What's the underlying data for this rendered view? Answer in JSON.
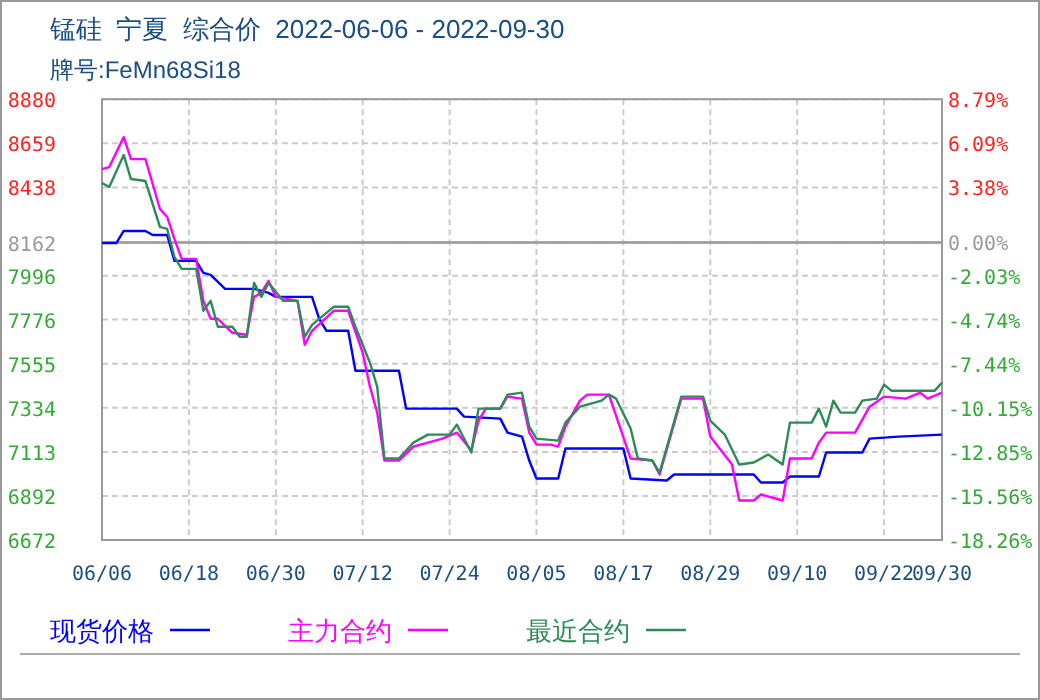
{
  "chart_data": {
    "type": "line",
    "title": "锰硅  宁夏  综合价  2022-06-06 - 2022-09-30",
    "subtitle": "牌号:FeMn68Si18",
    "xlim": [
      "2022-06-06",
      "2022-09-30"
    ],
    "xticks": [
      {
        "value": "2022-06-06",
        "label": "06/06"
      },
      {
        "value": "2022-06-18",
        "label": "06/18"
      },
      {
        "value": "2022-06-30",
        "label": "06/30"
      },
      {
        "value": "2022-07-12",
        "label": "07/12"
      },
      {
        "value": "2022-07-24",
        "label": "07/24"
      },
      {
        "value": "2022-08-05",
        "label": "08/05"
      },
      {
        "value": "2022-08-17",
        "label": "08/17"
      },
      {
        "value": "2022-08-29",
        "label": "08/29"
      },
      {
        "value": "2022-09-10",
        "label": "09/10"
      },
      {
        "value": "2022-09-22",
        "label": "09/22"
      },
      {
        "value": "2022-09-30",
        "label": "09/30"
      }
    ],
    "ylim": [
      6672,
      8880
    ],
    "yticks": [
      8880,
      8659,
      8438,
      8162,
      7996,
      7776,
      7555,
      7334,
      7113,
      6892,
      6672
    ],
    "y2lim": [
      -18.26,
      8.79
    ],
    "y2ticks": [
      {
        "value": 8.79,
        "label": "8.79%"
      },
      {
        "value": 6.09,
        "label": "6.09%"
      },
      {
        "value": 3.38,
        "label": "3.38%"
      },
      {
        "value": 0,
        "label": "0.00%"
      },
      {
        "value": -2.03,
        "label": "-2.03%"
      },
      {
        "value": -4.74,
        "label": "-4.74%"
      },
      {
        "value": -7.44,
        "label": "-7.44%"
      },
      {
        "value": -10.15,
        "label": "-10.15%"
      },
      {
        "value": -12.85,
        "label": "-12.85%"
      },
      {
        "value": -15.56,
        "label": "-15.56%"
      },
      {
        "value": -18.26,
        "label": "-18.26%"
      }
    ],
    "ref_lines": [
      {
        "axis": "y2",
        "value": 0,
        "color": "#999999"
      }
    ],
    "grid": true,
    "legend": "bottom",
    "series": [
      {
        "name": "现货价格",
        "color": "#0000ff",
        "x": [
          "2022-06-06",
          "2022-06-08",
          "2022-06-09",
          "2022-06-12",
          "2022-06-13",
          "2022-06-15",
          "2022-06-16",
          "2022-06-19",
          "2022-06-20",
          "2022-06-21",
          "2022-06-23",
          "2022-06-27",
          "2022-06-29",
          "2022-06-30",
          "2022-07-05",
          "2022-07-06",
          "2022-07-07",
          "2022-07-10",
          "2022-07-11",
          "2022-07-17",
          "2022-07-18",
          "2022-07-25",
          "2022-07-26",
          "2022-07-31",
          "2022-08-01",
          "2022-08-03",
          "2022-08-04",
          "2022-08-05",
          "2022-08-08",
          "2022-08-09",
          "2022-08-17",
          "2022-08-18",
          "2022-08-23",
          "2022-08-24",
          "2022-09-04",
          "2022-09-05",
          "2022-09-08",
          "2022-09-09",
          "2022-09-13",
          "2022-09-14",
          "2022-09-19",
          "2022-09-20",
          "2022-09-24",
          "2022-09-30"
        ],
        "values": [
          8160,
          8160,
          8220,
          8220,
          8200,
          8200,
          8070,
          8070,
          8010,
          8000,
          7930,
          7930,
          7910,
          7890,
          7890,
          7780,
          7720,
          7720,
          7520,
          7520,
          7330,
          7330,
          7290,
          7280,
          7210,
          7190,
          7070,
          6980,
          6980,
          7130,
          7130,
          6980,
          6970,
          7000,
          7000,
          6960,
          6960,
          6990,
          6990,
          7110,
          7110,
          7180,
          7190,
          7200
        ]
      },
      {
        "name": "主力合约",
        "color": "#ff00ff",
        "x": [
          "2022-06-06",
          "2022-06-07",
          "2022-06-09",
          "2022-06-10",
          "2022-06-12",
          "2022-06-14",
          "2022-06-15",
          "2022-06-16",
          "2022-06-17",
          "2022-06-19",
          "2022-06-20",
          "2022-06-21",
          "2022-06-22",
          "2022-06-24",
          "2022-06-26",
          "2022-06-27",
          "2022-06-28",
          "2022-06-29",
          "2022-06-30",
          "2022-07-03",
          "2022-07-04",
          "2022-07-05",
          "2022-07-08",
          "2022-07-10",
          "2022-07-12",
          "2022-07-13",
          "2022-07-14",
          "2022-07-15",
          "2022-07-17",
          "2022-07-19",
          "2022-07-23",
          "2022-07-25",
          "2022-07-27",
          "2022-07-28",
          "2022-07-29",
          "2022-07-31",
          "2022-08-01",
          "2022-08-03",
          "2022-08-04",
          "2022-08-05",
          "2022-08-07",
          "2022-08-08",
          "2022-08-09",
          "2022-08-11",
          "2022-08-12",
          "2022-08-15",
          "2022-08-18",
          "2022-08-21",
          "2022-08-22",
          "2022-08-25",
          "2022-08-28",
          "2022-08-29",
          "2022-09-01",
          "2022-09-02",
          "2022-09-04",
          "2022-09-05",
          "2022-09-08",
          "2022-09-09",
          "2022-09-12",
          "2022-09-13",
          "2022-09-14",
          "2022-09-18",
          "2022-09-20",
          "2022-09-22",
          "2022-09-25",
          "2022-09-27",
          "2022-09-28",
          "2022-09-30"
        ],
        "values": [
          8530,
          8540,
          8690,
          8580,
          8580,
          8330,
          8290,
          8180,
          8080,
          8080,
          7870,
          7780,
          7780,
          7710,
          7700,
          7890,
          7910,
          7970,
          7890,
          7870,
          7650,
          7720,
          7820,
          7820,
          7610,
          7440,
          7310,
          7070,
          7070,
          7140,
          7180,
          7210,
          7120,
          7270,
          7330,
          7330,
          7390,
          7380,
          7210,
          7150,
          7150,
          7140,
          7240,
          7370,
          7400,
          7400,
          7080,
          7070,
          7000,
          7380,
          7380,
          7190,
          7050,
          6870,
          6870,
          6900,
          6870,
          7080,
          7080,
          7160,
          7210,
          7210,
          7340,
          7390,
          7380,
          7410,
          7380,
          7410
        ]
      },
      {
        "name": "最近合约",
        "color": "#2e8b57",
        "x": [
          "2022-06-06",
          "2022-06-07",
          "2022-06-09",
          "2022-06-10",
          "2022-06-12",
          "2022-06-14",
          "2022-06-15",
          "2022-06-16",
          "2022-06-17",
          "2022-06-19",
          "2022-06-20",
          "2022-06-21",
          "2022-06-22",
          "2022-06-24",
          "2022-06-25",
          "2022-06-26",
          "2022-06-27",
          "2022-06-28",
          "2022-06-29",
          "2022-07-01",
          "2022-07-03",
          "2022-07-04",
          "2022-07-05",
          "2022-07-08",
          "2022-07-10",
          "2022-07-11",
          "2022-07-13",
          "2022-07-14",
          "2022-07-15",
          "2022-07-17",
          "2022-07-19",
          "2022-07-21",
          "2022-07-24",
          "2022-07-25",
          "2022-07-27",
          "2022-07-28",
          "2022-07-31",
          "2022-08-01",
          "2022-08-03",
          "2022-08-04",
          "2022-08-05",
          "2022-08-08",
          "2022-08-09",
          "2022-08-11",
          "2022-08-14",
          "2022-08-15",
          "2022-08-16",
          "2022-08-18",
          "2022-08-19",
          "2022-08-21",
          "2022-08-22",
          "2022-08-25",
          "2022-08-28",
          "2022-08-29",
          "2022-08-31",
          "2022-09-02",
          "2022-09-04",
          "2022-09-06",
          "2022-09-08",
          "2022-09-09",
          "2022-09-12",
          "2022-09-13",
          "2022-09-14",
          "2022-09-15",
          "2022-09-16",
          "2022-09-18",
          "2022-09-19",
          "2022-09-21",
          "2022-09-22",
          "2022-09-23",
          "2022-09-29",
          "2022-09-30"
        ],
        "values": [
          8460,
          8440,
          8600,
          8480,
          8470,
          8240,
          8230,
          8090,
          8030,
          8030,
          7820,
          7870,
          7740,
          7740,
          7690,
          7690,
          7960,
          7890,
          7960,
          7870,
          7870,
          7690,
          7750,
          7840,
          7840,
          7740,
          7560,
          7440,
          7080,
          7080,
          7160,
          7200,
          7200,
          7250,
          7110,
          7330,
          7330,
          7400,
          7410,
          7240,
          7180,
          7170,
          7260,
          7340,
          7370,
          7400,
          7380,
          7230,
          7080,
          7070,
          7010,
          7390,
          7390,
          7270,
          7200,
          7050,
          7060,
          7100,
          7050,
          7260,
          7260,
          7330,
          7240,
          7370,
          7310,
          7310,
          7370,
          7380,
          7450,
          7420,
          7420,
          7460
        ]
      }
    ]
  }
}
